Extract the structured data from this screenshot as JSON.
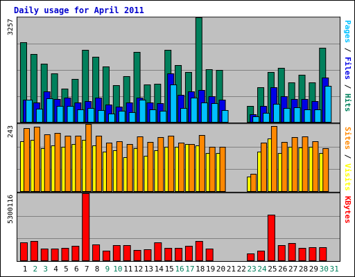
{
  "chart_data": {
    "type": "bar",
    "title": "Daily usage for April 2011",
    "colors": {
      "title": "#0000cc",
      "background": "#c0c0c0",
      "outer": "#ffffff",
      "hits": "#00805c",
      "files": "#0000e6",
      "pages": "#00c0ff",
      "visits": "#ffff00",
      "sites": "#ff8800",
      "kbytes": "#ff0000",
      "weekend_day": "#00805c",
      "weekday": "#000000"
    },
    "days": [
      "1",
      "2",
      "3",
      "4",
      "5",
      "6",
      "7",
      "8",
      "9",
      "10",
      "11",
      "12",
      "13",
      "14",
      "15",
      "16",
      "17",
      "18",
      "19",
      "20",
      "21",
      "22",
      "23",
      "24",
      "25",
      "26",
      "27",
      "28",
      "29",
      "30",
      "31"
    ],
    "weekend_days": [
      "2",
      "3",
      "9",
      "10",
      "16",
      "17",
      "23",
      "24",
      "30",
      "31"
    ],
    "panels": [
      {
        "id": "traffic",
        "ymax_label": "3257",
        "ymax": 3257,
        "side_label": [
          {
            "text": "Pages",
            "color": "#00c0ff"
          },
          {
            "text": " / ",
            "color": "#000000"
          },
          {
            "text": "Files",
            "color": "#0000e6"
          },
          {
            "text": " / ",
            "color": "#000000"
          },
          {
            "text": "Hits",
            "color": "#00805c"
          }
        ],
        "series": [
          {
            "name": "Hits",
            "color": "#00805c",
            "values": [
              2480,
              2130,
              1820,
              1530,
              1050,
              1360,
              2240,
              2030,
              1740,
              1150,
              1440,
              2190,
              1180,
              1210,
              2240,
              1770,
              1570,
              3250,
              1650,
              1620,
              0,
              0,
              510,
              1090,
              1570,
              1700,
              1240,
              1480,
              1250,
              2320
            ]
          },
          {
            "name": "Files",
            "color": "#0000e6",
            "values": [
              710,
              630,
              970,
              720,
              770,
              630,
              660,
              780,
              560,
              500,
              620,
              770,
              620,
              610,
              1530,
              850,
              970,
              1010,
              810,
              700,
              0,
              0,
              260,
              510,
              1100,
              810,
              720,
              720,
              660,
              1400
            ]
          },
          {
            "name": "Pages",
            "color": "#00c0ff",
            "values": [
              700,
              430,
              760,
              520,
              520,
              410,
              450,
              390,
              280,
              360,
              330,
              700,
              400,
              360,
              1180,
              450,
              780,
              630,
              610,
              380,
              0,
              0,
              200,
              310,
              580,
              450,
              480,
              400,
              400,
              1130
            ]
          }
        ]
      },
      {
        "id": "visitors",
        "ymax_label": "243",
        "ymax": 243,
        "side_label": [
          {
            "text": "Sites",
            "color": "#ff8800"
          },
          {
            "text": " / ",
            "color": "#000000"
          },
          {
            "text": "Visits",
            "color": "#ffff00"
          }
        ],
        "series": [
          {
            "name": "Visits",
            "color": "#ffff00",
            "values": [
              180,
              185,
              155,
              165,
              160,
              170,
              185,
              165,
              145,
              148,
              125,
              155,
              130,
              150,
              160,
              160,
              170,
              165,
              140,
              140,
              0,
              0,
              55,
              145,
              190,
              140,
              160,
              158,
              160,
              140
            ]
          },
          {
            "name": "Sites",
            "color": "#ff8800",
            "values": [
              228,
              233,
              205,
              210,
              200,
              202,
              242,
              200,
              177,
              182,
              172,
              198,
              178,
              196,
              200,
              175,
              172,
              203,
              162,
              160,
              0,
              0,
              65,
              175,
              235,
              178,
              196,
              198,
              180,
              155
            ]
          }
        ]
      },
      {
        "id": "volume",
        "ymax_label": "5300116",
        "ymax": 5300116,
        "side_label": [
          {
            "text": "KBytes",
            "color": "#ff0000"
          }
        ],
        "series": [
          {
            "name": "KBytes",
            "color": "#ff0000",
            "values": [
              1450000,
              1560000,
              990000,
              970000,
              1040000,
              1180000,
              5300000,
              1280000,
              820000,
              1240000,
              1240000,
              880000,
              930000,
              1480000,
              1020000,
              1020000,
              1180000,
              1580000,
              960000,
              0,
              0,
              0,
              590000,
              810000,
              3600000,
              1250000,
              1410000,
              1020000,
              1080000,
              1100000
            ]
          }
        ]
      }
    ]
  }
}
